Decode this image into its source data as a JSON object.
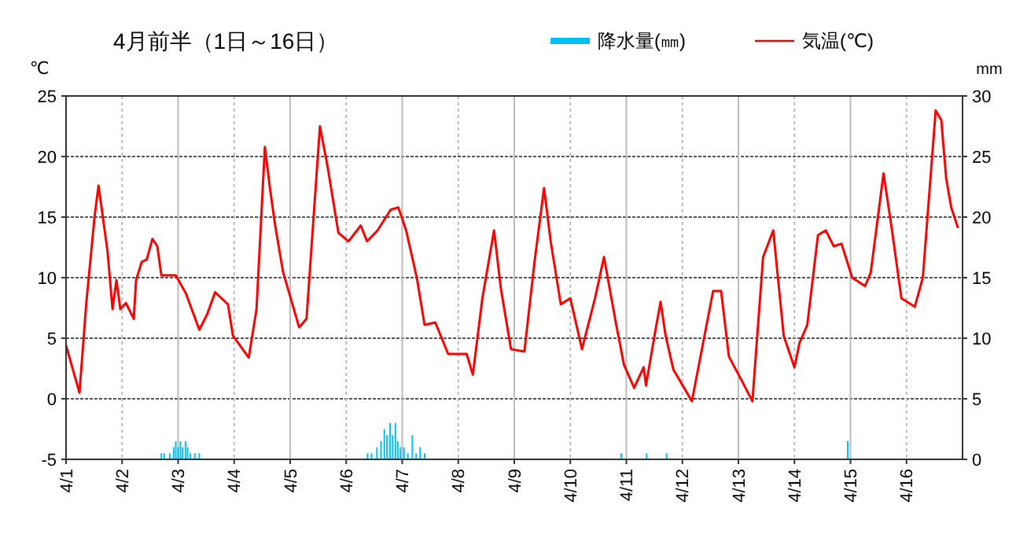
{
  "chart_data": {
    "type": "line",
    "title": "4月前半（1日～16日）",
    "ylabel": "℃",
    "y2label": "mm",
    "xlim": [
      "--04-01",
      "--04-17"
    ],
    "xticks": [
      {
        "value": "--04-01",
        "label": "4/1"
      },
      {
        "value": "--04-02",
        "label": "4/2"
      },
      {
        "value": "--04-03",
        "label": "4/3"
      },
      {
        "value": "--04-04",
        "label": "4/4"
      },
      {
        "value": "--04-05",
        "label": "4/5"
      },
      {
        "value": "--04-06",
        "label": "4/6"
      },
      {
        "value": "--04-07",
        "label": "4/7"
      },
      {
        "value": "--04-08",
        "label": "4/8"
      },
      {
        "value": "--04-09",
        "label": "4/9"
      },
      {
        "value": "--04-10",
        "label": "4/10"
      },
      {
        "value": "--04-11",
        "label": "4/11"
      },
      {
        "value": "--04-12",
        "label": "4/12"
      },
      {
        "value": "--04-13",
        "label": "4/13"
      },
      {
        "value": "--04-14",
        "label": "4/14"
      },
      {
        "value": "--04-15",
        "label": "4/15"
      },
      {
        "value": "--04-16",
        "label": "4/16"
      }
    ],
    "ylim": [
      -5,
      25
    ],
    "yticks": [
      -5,
      0,
      5,
      10,
      15,
      20,
      25
    ],
    "y2lim": [
      0,
      30
    ],
    "y2ticks": [
      0,
      5,
      10,
      15,
      20,
      25,
      30
    ],
    "grid": true,
    "legend": "top right",
    "line_style": "solid",
    "series": [
      {
        "name": "降水量(㎜)",
        "type": "bar",
        "axis": "y2",
        "color": "#00c0f0",
        "x": [
          "--04-02T16:50",
          "--04-02T18:00",
          "--04-02T20:25",
          "--04-02T22:05",
          "--04-02T23:00",
          "--04-03T00:00",
          "--04-03T01:00",
          "--04-03T01:55",
          "--04-03T03:10",
          "--04-03T04:05",
          "--04-03T05:15",
          "--04-03T07:10",
          "--04-03T09:05",
          "--04-06T09:10",
          "--04-06T10:50",
          "--04-06T13:10",
          "--04-06T14:55",
          "--04-06T16:20",
          "--04-06T17:30",
          "--04-06T18:45",
          "--04-06T19:55",
          "--04-06T21:05",
          "--04-06T22:05",
          "--04-06T23:15",
          "--04-07T00:45",
          "--04-07T02:25",
          "--04-07T04:20",
          "--04-07T06:00",
          "--04-07T07:40",
          "--04-07T09:35",
          "--04-10T21:50",
          "--04-11T08:40",
          "--04-11T17:15",
          "--04-14T22:50"
        ],
        "values": [
          0.5,
          0.5,
          0.5,
          1.0,
          1.5,
          1.0,
          1.5,
          1.0,
          1.5,
          1.0,
          0.5,
          0.5,
          0.5,
          0.5,
          0.5,
          1.0,
          1.5,
          2.5,
          2.0,
          3.0,
          2.0,
          3.0,
          1.5,
          1.0,
          1.0,
          0.5,
          2.0,
          0.5,
          1.0,
          0.5,
          0.5,
          0.5,
          0.5,
          1.5
        ]
      },
      {
        "name": "気温(℃)",
        "axis": "y",
        "color": "#ff0000",
        "x": [
          "--04-01T00:00",
          "--04-01T05:45",
          "--04-01T08:40",
          "--04-01T12:15",
          "--04-01T13:55",
          "--04-01T17:45",
          "--04-01T19:55",
          "--04-01T21:35",
          "--04-01T23:15",
          "--04-02T01:40",
          "--04-02T05:00",
          "--04-02T06:00",
          "--04-02T08:25",
          "--04-02T10:35",
          "--04-02T13:00",
          "--04-02T15:05",
          "--04-02T16:50",
          "--04-02T23:00",
          "--04-03T03:20",
          "--04-03T09:05",
          "--04-03T12:30",
          "--04-03T15:50",
          "--04-03T21:20",
          "--04-03T23:30",
          "--04-04T06:15",
          "--04-04T09:35",
          "--04-04T13:10",
          "--04-04T15:20",
          "--04-04T17:30",
          "--04-04T20:55",
          "--04-05T03:50",
          "--04-05T07:00",
          "--04-05T12:45",
          "--04-05T16:05",
          "--04-05T20:40",
          "--04-06T01:00",
          "--04-06T06:15",
          "--04-06T08:55",
          "--04-06T13:25",
          "--04-06T19:00",
          "--04-06T22:20",
          "--04-07T01:40",
          "--04-07T06:15",
          "--04-07T09:35",
          "--04-07T14:10",
          "--04-07T19:40",
          "--04-08T03:35",
          "--04-08T06:15",
          "--04-08T10:20",
          "--04-08T15:20",
          "--04-08T18:15",
          "--04-08T22:35",
          "--04-09T04:20",
          "--04-09T08:40",
          "--04-09T12:45",
          "--04-09T15:35",
          "--04-09T19:55",
          "--04-10T00:00",
          "--04-10T05:00",
          "--04-10T10:35",
          "--04-10T14:25",
          "--04-10T19:40",
          "--04-10T23:00",
          "--04-11T03:20",
          "--04-11T07:25",
          "--04-11T08:25",
          "--04-11T12:30",
          "--04-11T14:40",
          "--04-11T16:50",
          "--04-11T20:10",
          "--04-12T04:05",
          "--04-12T08:40",
          "--04-12T13:10",
          "--04-12T16:35",
          "--04-12T19:55",
          "--04-13T01:25",
          "--04-13T06:00",
          "--04-13T10:35",
          "--04-13T14:55",
          "--04-13T19:25",
          "--04-14T00:00",
          "--04-14T02:10",
          "--04-14T05:30",
          "--04-14T10:05",
          "--04-14T13:25",
          "--04-14T16:50",
          "--04-14T20:10",
          "--04-15T00:45",
          "--04-15T06:15",
          "--04-15T08:40",
          "--04-15T14:10",
          "--04-15T17:30",
          "--04-15T21:50",
          "--04-16T03:35",
          "--04-16T07:00",
          "--04-16T12:30",
          "--04-16T14:55",
          "--04-16T17:00",
          "--04-16T19:10",
          "--04-16T22:05"
        ],
        "values": [
          4.4,
          0.5,
          7.9,
          15.1,
          17.6,
          12.2,
          7.4,
          9.8,
          7.4,
          7.9,
          6.6,
          9.8,
          11.3,
          11.5,
          13.2,
          12.6,
          10.2,
          10.2,
          8.7,
          5.7,
          7.0,
          8.8,
          7.8,
          5.2,
          3.4,
          7.4,
          20.8,
          17.4,
          14.4,
          10.5,
          5.9,
          6.6,
          22.5,
          19.1,
          13.7,
          13.0,
          14.3,
          13.0,
          13.9,
          15.6,
          15.8,
          13.9,
          10.0,
          6.1,
          6.3,
          3.7,
          3.7,
          2.0,
          8.3,
          13.9,
          9.1,
          4.1,
          3.9,
          11.3,
          17.4,
          13.0,
          7.8,
          8.3,
          4.1,
          8.3,
          11.7,
          6.1,
          2.8,
          0.9,
          2.6,
          1.1,
          5.7,
          8.0,
          5.2,
          2.4,
          -0.2,
          4.4,
          8.9,
          8.9,
          3.5,
          1.5,
          -0.2,
          11.7,
          13.9,
          5.2,
          2.6,
          4.6,
          6.1,
          13.5,
          13.9,
          12.6,
          12.8,
          10.0,
          9.3,
          10.4,
          18.6,
          14.3,
          8.3,
          7.6,
          10.0,
          23.8,
          23.0,
          18.2,
          15.8,
          14.1
        ]
      }
    ]
  }
}
